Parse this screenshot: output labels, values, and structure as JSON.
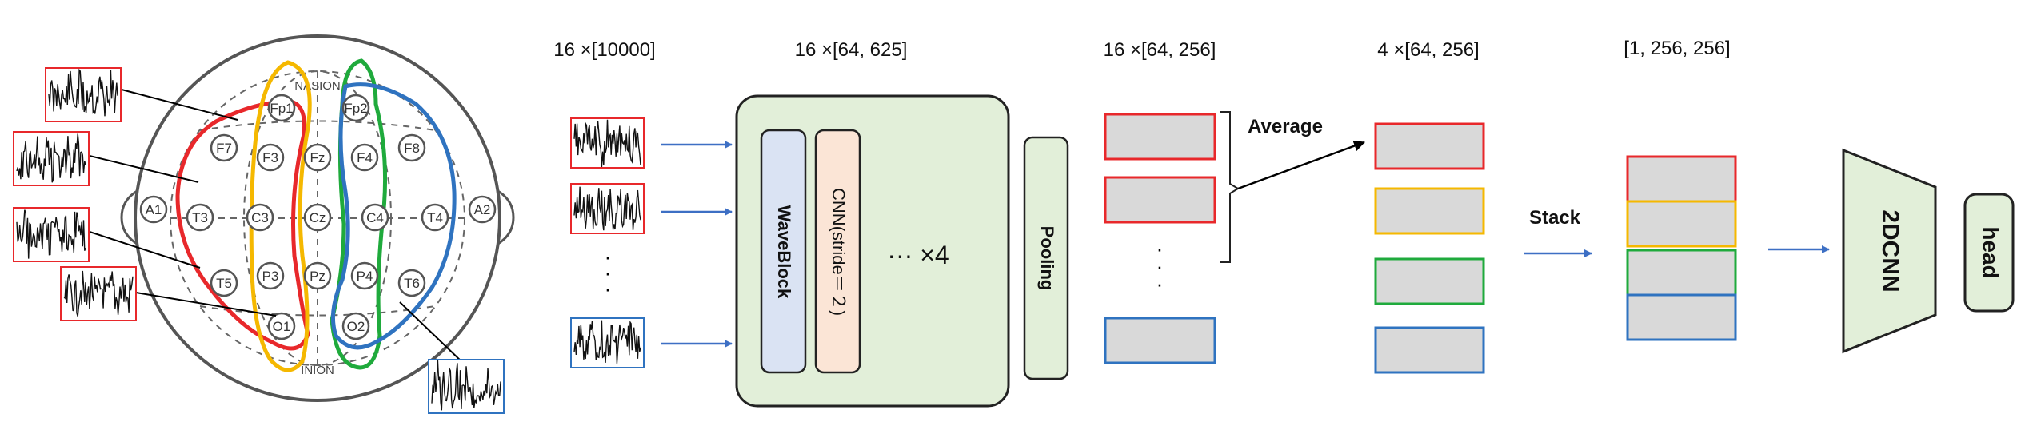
{
  "colors": {
    "red": "#e8282b",
    "yellow": "#f5b800",
    "green": "#1faa3c",
    "blue": "#2f73c0",
    "arrow": "#3d6fc4",
    "gray_fill": "#d9d9d9",
    "green_fill": "#e2efd9",
    "wave_fill": "#dae3f3",
    "cnn_fill": "#fbe5d6"
  },
  "head_diagram": {
    "top_label": "NASION",
    "bottom_label": "INION",
    "electrodes": [
      "Fp1",
      "Fp2",
      "F7",
      "F3",
      "Fz",
      "F4",
      "F8",
      "A1",
      "T3",
      "C3",
      "Cz",
      "C4",
      "T4",
      "A2",
      "T5",
      "P3",
      "Pz",
      "P4",
      "T6",
      "O1",
      "O2"
    ]
  },
  "shape_labels": {
    "raw": "16 ×[10000]",
    "features": "16 ×[64, 625]",
    "pooled": "16 ×[64, 256]",
    "averaged": "4 ×[64, 256]",
    "stacked": "[1, 256, 256]"
  },
  "encoder": {
    "waveblock_label": "WaveBlock",
    "cnn_label": "CNN(stride＝２)",
    "repeat_label": "··· ×4",
    "pooling_label": "Pooling"
  },
  "ops": {
    "average_label": "Average",
    "stack_label": "Stack",
    "cnn2d_label": "2DCNN",
    "head_label": "head"
  },
  "dots_symbol": "·"
}
